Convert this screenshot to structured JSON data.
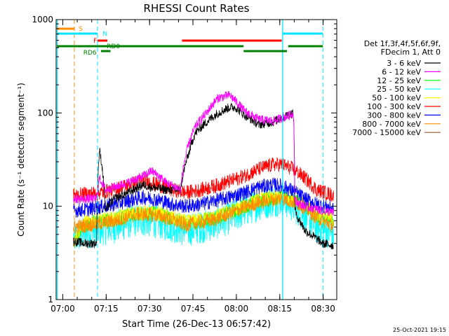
{
  "chart_data": {
    "type": "line",
    "title": "RHESSI Count Rates",
    "xlabel": "Start Time (26-Dec-13 06:57:42)",
    "ylabel": "Count Rate (s⁻¹ detector segment⁻¹)",
    "yscale": "log",
    "ylim": [
      1,
      1000
    ],
    "xlim_minutes": [
      0,
      97
    ],
    "x_tick_labels": [
      "07:00",
      "07:15",
      "07:30",
      "07:45",
      "08:00",
      "08:15",
      "08:30"
    ],
    "x_tick_minutes": [
      2.3,
      17.3,
      32.3,
      47.3,
      62.3,
      77.3,
      92.3
    ],
    "y_tick_labels": [
      "1",
      "10",
      "100",
      "1000"
    ],
    "y_tick_values": [
      1,
      10,
      100,
      1000
    ],
    "legend_header": [
      "Det 1f,3f,4f,5f,6f,9f,",
      "FDecim 1, Att 0"
    ],
    "series": [
      {
        "name": "3 - 6 keV",
        "color": "#000000",
        "t": [
          6,
          10,
          14,
          15,
          17,
          20,
          25,
          30,
          33,
          38,
          43,
          46,
          48,
          52,
          56,
          60,
          62,
          65,
          70,
          75,
          80,
          82,
          82.5,
          83,
          86,
          92,
          96
        ],
        "v": [
          4.2,
          4,
          4,
          40,
          9,
          12,
          14,
          17,
          16,
          15,
          15,
          38,
          60,
          80,
          100,
          115,
          115,
          95,
          75,
          80,
          95,
          100,
          10,
          8,
          5.5,
          4,
          3.8
        ]
      },
      {
        "name": "6 - 12 keV",
        "color": "#ff00ff",
        "t": [
          6,
          10,
          14,
          15,
          17,
          20,
          25,
          30,
          33,
          38,
          43,
          46,
          48,
          52,
          56,
          60,
          62,
          65,
          70,
          75,
          80,
          82,
          82.5,
          83,
          86,
          92,
          96
        ],
        "v": [
          12,
          12,
          12,
          20,
          15,
          16,
          18,
          21,
          24,
          18,
          15,
          48,
          70,
          100,
          145,
          155,
          135,
          105,
          85,
          82,
          92,
          100,
          12,
          11,
          10,
          9,
          8.5
        ]
      },
      {
        "name": "12 - 25 keV",
        "color": "#00ff00",
        "t": [
          0,
          10,
          20,
          28,
          35,
          45,
          55,
          62,
          70,
          78,
          84,
          90,
          96
        ],
        "v": [
          0,
          6.5,
          7.2,
          8.5,
          8.3,
          6.5,
          7.5,
          9,
          11.5,
          12.5,
          11,
          8,
          7
        ]
      },
      {
        "name": "25 - 50 keV",
        "color": "#00ffff",
        "t": [
          0,
          6,
          10,
          20,
          28,
          35,
          45,
          55,
          62,
          70,
          78,
          84,
          90,
          96
        ],
        "v": [
          0,
          4.5,
          5.2,
          6,
          7.2,
          6.8,
          5.5,
          6.5,
          8,
          10.5,
          12,
          9,
          6,
          5
        ]
      },
      {
        "name": "50 - 100 keV",
        "color": "#ffff00",
        "t": [
          0,
          10,
          20,
          28,
          35,
          45,
          55,
          62,
          70,
          78,
          84,
          90,
          96
        ],
        "v": [
          0,
          6.8,
          7.4,
          8.7,
          8.4,
          6.8,
          7.7,
          9.2,
          11.8,
          12.8,
          11.2,
          8.2,
          7.2
        ]
      },
      {
        "name": "100 - 300 keV",
        "color": "#ff0000",
        "t": [
          6,
          10,
          15,
          20,
          25,
          30,
          35,
          40,
          45,
          50,
          55,
          60,
          65,
          70,
          75,
          78,
          82,
          86,
          90,
          96
        ],
        "v": [
          13,
          13.5,
          14,
          15,
          17,
          19,
          17,
          15,
          14,
          15,
          16.5,
          18.5,
          21,
          25,
          28,
          28,
          25,
          20,
          15,
          13
        ]
      },
      {
        "name": "300 - 800 keV",
        "color": "#0000ff",
        "t": [
          6,
          10,
          15,
          20,
          25,
          30,
          35,
          40,
          45,
          50,
          55,
          60,
          65,
          70,
          75,
          78,
          82,
          86,
          90,
          96
        ],
        "v": [
          9,
          9.2,
          9.8,
          10.5,
          11.5,
          12.5,
          11.8,
          10.5,
          10,
          10.5,
          11.5,
          12.5,
          14,
          16,
          17,
          16.5,
          14.5,
          12,
          10.5,
          9.5
        ]
      },
      {
        "name": "800 - 7000 keV",
        "color": "#ff8c00",
        "t": [
          6,
          10,
          20,
          28,
          35,
          45,
          55,
          62,
          70,
          78,
          84,
          90,
          96
        ],
        "v": [
          6,
          6.2,
          6.9,
          8.2,
          8,
          6.3,
          7.2,
          8.8,
          11,
          12.2,
          10.6,
          7.6,
          6
        ]
      },
      {
        "name": "7000 - 15000 keV",
        "color": "#a0522d",
        "t": [],
        "v": []
      }
    ],
    "attenuator_markers": [
      {
        "label": "S",
        "color": "#ff8c00"
      },
      {
        "label": "N",
        "color": "#00e5ff"
      },
      {
        "label": "F",
        "color": "#ff0000"
      },
      {
        "label": "RD0",
        "color": "#008000"
      },
      {
        "label": "RD6",
        "color": "#008000"
      }
    ],
    "footer_date": "25-Oct-2021 19:15"
  }
}
